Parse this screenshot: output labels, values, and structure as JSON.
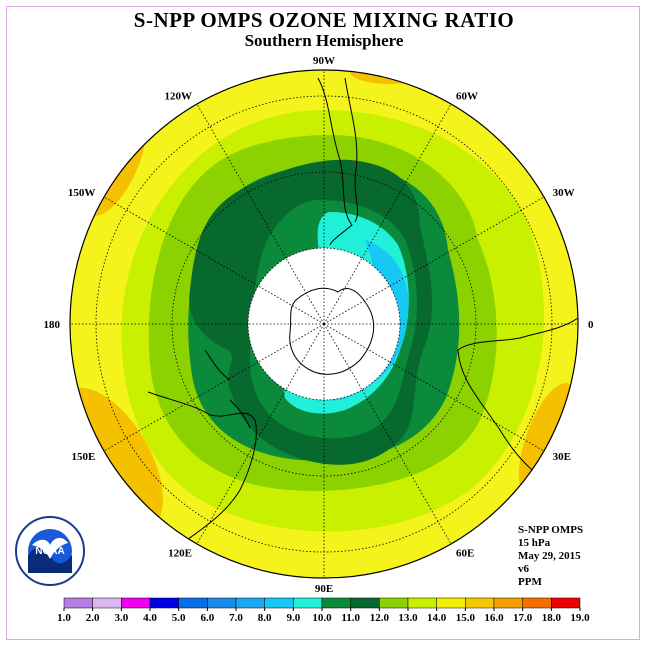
{
  "title": "S-NPP OMPS OZONE MIXING RATIO",
  "subtitle": "Southern Hemisphere",
  "longitude_labels": [
    {
      "text": "90W",
      "angle": -90
    },
    {
      "text": "60W",
      "angle": -60
    },
    {
      "text": "30W",
      "angle": -30
    },
    {
      "text": "0",
      "angle": 0
    },
    {
      "text": "30E",
      "angle": 30
    },
    {
      "text": "60E",
      "angle": 60
    },
    {
      "text": "90E",
      "angle": 90
    },
    {
      "text": "120E",
      "angle": 120
    },
    {
      "text": "150E",
      "angle": 150
    },
    {
      "text": "180",
      "angle": 180
    },
    {
      "text": "150W",
      "angle": 210
    },
    {
      "text": "120W",
      "angle": 240
    }
  ],
  "info": {
    "instrument": "S-NPP OMPS",
    "level": "15 hPa",
    "date": "May 29, 2015",
    "version": "v6",
    "units": "PPM"
  },
  "logo": {
    "text": "NOAA"
  },
  "colorbar": {
    "ticks": [
      "1.0",
      "2.0",
      "3.0",
      "4.0",
      "5.0",
      "6.0",
      "7.0",
      "8.0",
      "9.0",
      "10.0",
      "11.0",
      "12.0",
      "13.0",
      "14.0",
      "15.0",
      "16.0",
      "17.0",
      "18.0",
      "19.0"
    ],
    "colors": [
      "#b57ee6",
      "#d9b8f0",
      "#f000f0",
      "#0000e6",
      "#0a6ee6",
      "#1a8ae8",
      "#1aa8f0",
      "#18c8f4",
      "#20f0d8",
      "#0a8a3a",
      "#08692e",
      "#8cd200",
      "#c8f000",
      "#f0f000",
      "#f4c800",
      "#f4a000",
      "#f46e00",
      "#f00000",
      "#7a5a46"
    ],
    "legend_colors_note": "segments between ticks"
  },
  "colors": {
    "ring_yellow": "#f4f41c",
    "ring_lightgreen": "#c8f000",
    "ring_green": "#8cd200",
    "dark_green": "#0a8a3a",
    "darker_green": "#08692e",
    "cyan": "#20f0d8",
    "light_blue": "#18c8f4",
    "orange": "#f4c000",
    "polar_cap": "#ffffff"
  }
}
